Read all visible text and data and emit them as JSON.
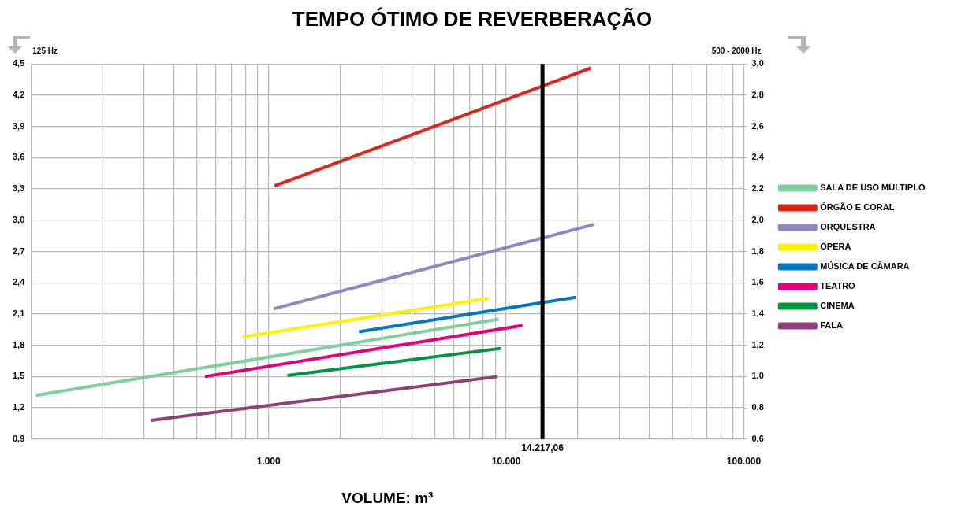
{
  "chart_data": {
    "type": "line",
    "title": "TEMPO ÓTIMO DE REVERBERAÇÃO",
    "xlabel": "VOLUME: m³",
    "ylabel": "125 Hz",
    "y2label": "500 - 2000 Hz",
    "log": "x",
    "grid": true,
    "legend": "right",
    "marker": "none",
    "line_style": "solid",
    "xlim": [
      100,
      100000
    ],
    "xticks": [
      {
        "value": 100,
        "label": null
      },
      {
        "value": 200,
        "label": null
      },
      {
        "value": 300,
        "label": null
      },
      {
        "value": 400,
        "label": null
      },
      {
        "value": 500,
        "label": null
      },
      {
        "value": 600,
        "label": null
      },
      {
        "value": 700,
        "label": null
      },
      {
        "value": 800,
        "label": null
      },
      {
        "value": 900,
        "label": null
      },
      {
        "value": 1000,
        "label": "1.000"
      },
      {
        "value": 2000,
        "label": null
      },
      {
        "value": 3000,
        "label": null
      },
      {
        "value": 4000,
        "label": null
      },
      {
        "value": 5000,
        "label": null
      },
      {
        "value": 6000,
        "label": null
      },
      {
        "value": 7000,
        "label": null
      },
      {
        "value": 8000,
        "label": null
      },
      {
        "value": 9000,
        "label": null
      },
      {
        "value": 10000,
        "label": "10.000"
      },
      {
        "value": 20000,
        "label": null
      },
      {
        "value": 30000,
        "label": null
      },
      {
        "value": 40000,
        "label": null
      },
      {
        "value": 50000,
        "label": null
      },
      {
        "value": 60000,
        "label": null
      },
      {
        "value": 70000,
        "label": null
      },
      {
        "value": 80000,
        "label": null
      },
      {
        "value": 90000,
        "label": null
      },
      {
        "value": 100000,
        "label": "100.000"
      }
    ],
    "ylim": [
      0.9,
      4.5
    ],
    "yticks": [
      {
        "value": 0.9,
        "label": "0,9"
      },
      {
        "value": 1.2,
        "label": "1,2"
      },
      {
        "value": 1.5,
        "label": "1,5"
      },
      {
        "value": 1.8,
        "label": "1,8"
      },
      {
        "value": 2.1,
        "label": "2,1"
      },
      {
        "value": 2.4,
        "label": "2,4"
      },
      {
        "value": 2.7,
        "label": "2,7"
      },
      {
        "value": 3.0,
        "label": "3,0"
      },
      {
        "value": 3.3,
        "label": "3,3"
      },
      {
        "value": 3.6,
        "label": "3,6"
      },
      {
        "value": 3.9,
        "label": "3,9"
      },
      {
        "value": 4.2,
        "label": "4,2"
      },
      {
        "value": 4.5,
        "label": "4,5"
      }
    ],
    "y2lim": [
      0.6,
      3.0
    ],
    "y2ticks": [
      {
        "value": 0.6,
        "label": "0,6"
      },
      {
        "value": 0.8,
        "label": "0,8"
      },
      {
        "value": 1.0,
        "label": "1,0"
      },
      {
        "value": 1.2,
        "label": "1,2"
      },
      {
        "value": 1.4,
        "label": "1,4"
      },
      {
        "value": 1.6,
        "label": "1,6"
      },
      {
        "value": 1.8,
        "label": "1,8"
      },
      {
        "value": 2.0,
        "label": "2,0"
      },
      {
        "value": 2.2,
        "label": "2,2"
      },
      {
        "value": 2.4,
        "label": "2,4"
      },
      {
        "value": 2.6,
        "label": "2,6"
      },
      {
        "value": 2.8,
        "label": "2,8"
      },
      {
        "value": 3.0,
        "label": "3,0"
      }
    ],
    "ref_lines": [
      {
        "axis": "x",
        "value": 14217.06,
        "label": "14.217,06",
        "color": "#000000"
      }
    ],
    "series": [
      {
        "name": "SALA DE USO MÚLTIPLO",
        "color": "#7fcfa0",
        "x": [
          105,
          9300
        ],
        "values": [
          1.32,
          2.05
        ]
      },
      {
        "name": "ÓRGÃO E CORAL",
        "color": "#e2231a",
        "x": [
          1060,
          22700
        ],
        "values": [
          3.33,
          4.46
        ]
      },
      {
        "name": "ORQUESTRA",
        "color": "#8f86c4",
        "x": [
          1050,
          23400
        ],
        "values": [
          2.15,
          2.96
        ]
      },
      {
        "name": "ÓPERA",
        "color": "#fff200",
        "x": [
          780,
          8400
        ],
        "values": [
          1.88,
          2.25
        ]
      },
      {
        "name": "MÚSICA DE CÂMARA",
        "color": "#0077c8",
        "x": [
          2400,
          19600
        ],
        "values": [
          1.93,
          2.26
        ]
      },
      {
        "name": "TEATRO",
        "color": "#e6007e",
        "x": [
          540,
          11700
        ],
        "values": [
          1.5,
          1.99
        ]
      },
      {
        "name": "CINEMA",
        "color": "#009640",
        "x": [
          1200,
          9500
        ],
        "values": [
          1.51,
          1.77
        ]
      },
      {
        "name": "FALA",
        "color": "#8e3f7e",
        "x": [
          320,
          9200
        ],
        "values": [
          1.08,
          1.5
        ]
      }
    ]
  }
}
